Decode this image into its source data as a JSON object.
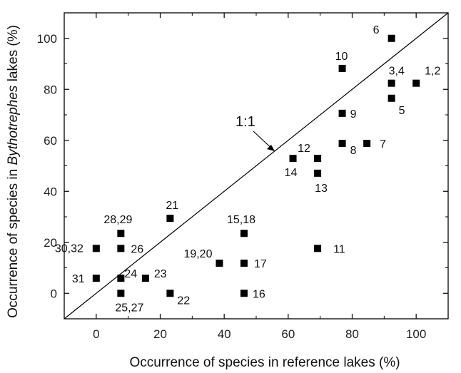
{
  "chart_data": {
    "type": "scatter",
    "xlabel": "Occurrence of species in reference lakes (%)",
    "ylabel_parts": [
      "Occurrence of species in ",
      "Bythotrephes",
      " lakes (%)"
    ],
    "xlim": [
      -10,
      110
    ],
    "ylim": [
      -10,
      110
    ],
    "xticks": [
      0,
      20,
      40,
      60,
      80,
      100
    ],
    "yticks": [
      0,
      20,
      40,
      60,
      80,
      100
    ],
    "grid": false,
    "marker": "square",
    "marker_color": "#000000",
    "reference_line": {
      "label": "1:1",
      "slope": 1,
      "intercept": 0
    },
    "points": [
      {
        "label": "6",
        "x": 92.3,
        "y": 100.0
      },
      {
        "label": "10",
        "x": 76.9,
        "y": 88.2
      },
      {
        "label": "3,4",
        "x": 92.3,
        "y": 82.4
      },
      {
        "label": "1,2",
        "x": 100.0,
        "y": 82.4
      },
      {
        "label": "5",
        "x": 92.3,
        "y": 76.5
      },
      {
        "label": "9",
        "x": 76.9,
        "y": 70.6
      },
      {
        "label": "8",
        "x": 76.9,
        "y": 58.8
      },
      {
        "label": "7",
        "x": 84.6,
        "y": 58.8
      },
      {
        "label": "12",
        "x": 69.2,
        "y": 52.9
      },
      {
        "label": "14",
        "x": 61.5,
        "y": 52.9
      },
      {
        "label": "13",
        "x": 69.2,
        "y": 47.1
      },
      {
        "label": "21",
        "x": 23.1,
        "y": 29.4
      },
      {
        "label": "28,29",
        "x": 7.7,
        "y": 23.5
      },
      {
        "label": "15,18",
        "x": 46.2,
        "y": 23.5
      },
      {
        "label": "30,32",
        "x": 0.0,
        "y": 17.6
      },
      {
        "label": "26",
        "x": 7.7,
        "y": 17.6
      },
      {
        "label": "11",
        "x": 69.2,
        "y": 17.6
      },
      {
        "label": "19,20",
        "x": 38.5,
        "y": 11.8
      },
      {
        "label": "17",
        "x": 46.2,
        "y": 11.8
      },
      {
        "label": "31",
        "x": 0.0,
        "y": 5.9
      },
      {
        "label": "24",
        "x": 7.7,
        "y": 5.9
      },
      {
        "label": "23",
        "x": 15.4,
        "y": 5.9
      },
      {
        "label": "25,27",
        "x": 7.7,
        "y": 0.0
      },
      {
        "label": "22",
        "x": 23.1,
        "y": 0.0
      },
      {
        "label": "16",
        "x": 46.2,
        "y": 0.0
      }
    ]
  }
}
